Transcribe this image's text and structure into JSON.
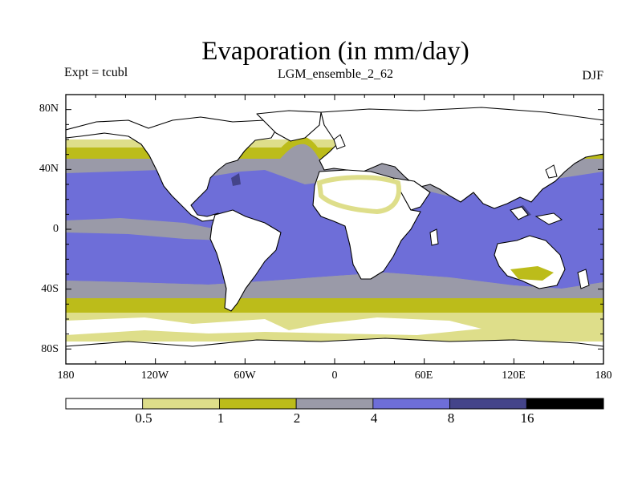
{
  "header": {
    "title": "Evaporation (in mm/day)",
    "experiment": "Expt = tcubl",
    "run_name": "LGM_ensemble_2_62",
    "season": "DJF"
  },
  "axes": {
    "y_ticks": [
      "80N",
      "40N",
      "0",
      "40S",
      "80S"
    ],
    "x_ticks": [
      "180",
      "120W",
      "60W",
      "0",
      "60E",
      "120E",
      "180"
    ]
  },
  "colorbar": {
    "labels": [
      "0.5",
      "1",
      "2",
      "4",
      "8",
      "16"
    ],
    "colors": [
      "#ffffff",
      "#dede8a",
      "#bcbc1a",
      "#9a9aa8",
      "#6e6ed8",
      "#44448a",
      "#000000"
    ]
  },
  "colors": {
    "land": "#ffffff",
    "coast": "#000000"
  }
}
